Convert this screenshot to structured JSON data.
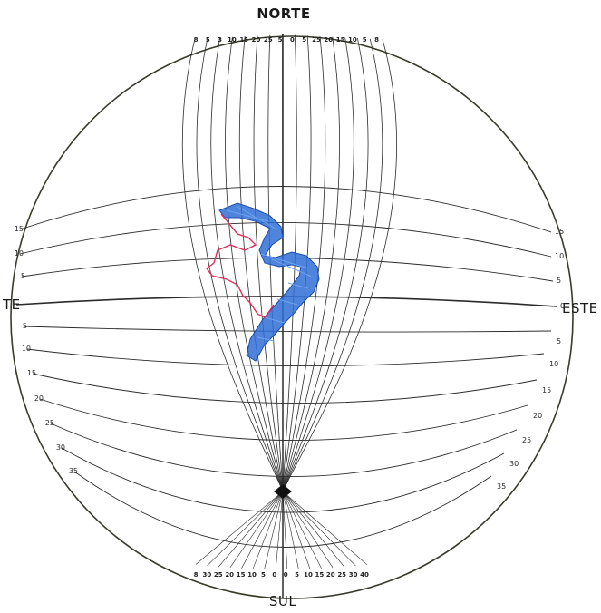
{
  "labels": {
    "north": "NORTE",
    "south": "SUL",
    "east": "ESTE",
    "west": "TE"
  },
  "latitude_ticks": {
    "left": [
      "15",
      "10",
      "5",
      "",
      "5",
      "10",
      "15",
      "20",
      "25",
      "30",
      "35"
    ],
    "right": [
      "15",
      "10",
      "5",
      "0",
      "5",
      "10",
      "15",
      "20",
      "25",
      "30",
      "35"
    ]
  },
  "top_scale": [
    "8",
    "5",
    "3",
    "10",
    "15",
    "20",
    "25",
    "5",
    "0",
    "5",
    "25",
    "20",
    "15",
    "10",
    "5",
    "8"
  ],
  "bottom_scale": [
    "8",
    "30",
    "25",
    "20",
    "15",
    "10",
    "5",
    "0",
    "0",
    "5",
    "10",
    "15",
    "20",
    "25",
    "30",
    "40"
  ],
  "colors": {
    "grid": "#2b2b2b",
    "circle": "#3a3a2c",
    "land_fill": "#2f6fd6",
    "land_edge": "#1d4fb0",
    "border": "#e0305a"
  },
  "features": {
    "land_mass": "brazil-coast",
    "border_line": "western-border"
  }
}
